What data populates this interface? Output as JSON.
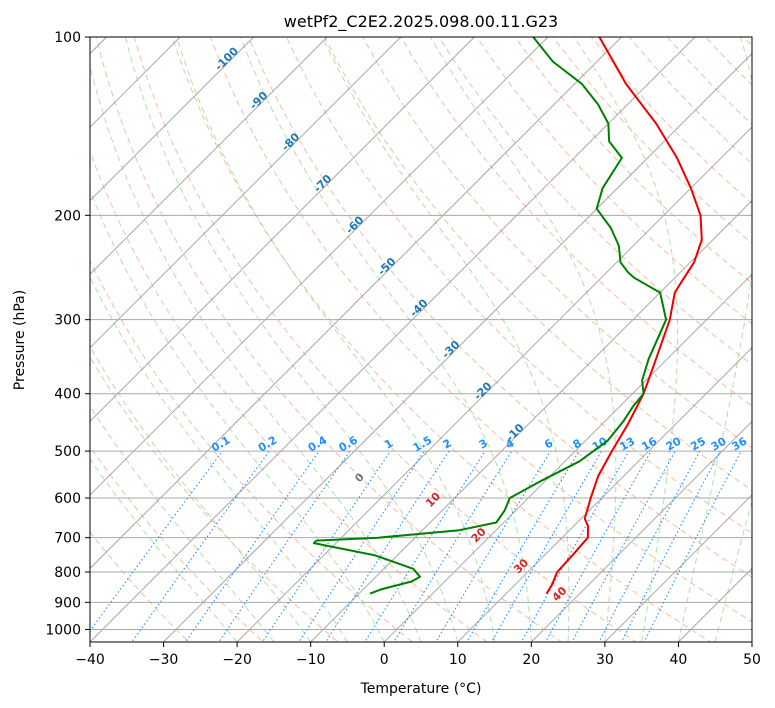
{
  "chart_data": {
    "type": "line",
    "title": "wetPf2_C2E2.2025.098.00.11.G23",
    "xlabel": "Temperature (°C)",
    "ylabel": "Pressure (hPa)",
    "xlim": [
      -40,
      50
    ],
    "ylim": [
      1050,
      100
    ],
    "y_scale": "log",
    "x_ticks": [
      -40,
      -30,
      -20,
      -10,
      0,
      10,
      20,
      30,
      40,
      50
    ],
    "x_tick_labels": [
      "−40",
      "−30",
      "−20",
      "−10",
      "0",
      "10",
      "20",
      "30",
      "40",
      "50"
    ],
    "y_ticks": [
      100,
      200,
      300,
      400,
      500,
      600,
      700,
      800,
      900,
      1000
    ],
    "y_tick_labels": [
      "100",
      "200",
      "300",
      "400",
      "500",
      "600",
      "700",
      "800",
      "900",
      "1000"
    ],
    "grid": true,
    "skew_deg": 45,
    "colors": {
      "temperature": "#ee0000",
      "dewpoint": "#008000",
      "isotherm": "#888888",
      "dry_adiabat": "#f4a582",
      "moist_adiabat": "#a6d8a0",
      "mixing_ratio": "#1e90ff",
      "isotherm_label": "#1f77b4",
      "wetbulb_label": "#d62728"
    },
    "series": [
      {
        "key": "temperature",
        "points": [
          [
            15.5,
            870
          ],
          [
            15.0,
            840
          ],
          [
            14.0,
            800
          ],
          [
            13.8,
            750
          ],
          [
            13.5,
            700
          ],
          [
            12.0,
            670
          ],
          [
            10.5,
            650
          ],
          [
            8.5,
            600
          ],
          [
            6.5,
            550
          ],
          [
            5.0,
            500
          ],
          [
            3.5,
            450
          ],
          [
            1.5,
            400
          ],
          [
            -1.5,
            350
          ],
          [
            -5.0,
            300
          ],
          [
            -8.0,
            270
          ],
          [
            -8.5,
            260
          ],
          [
            -9.5,
            240
          ],
          [
            -11.5,
            220
          ],
          [
            -15.0,
            200
          ],
          [
            -20.0,
            180
          ],
          [
            -26.0,
            160
          ],
          [
            -33.5,
            140
          ],
          [
            -43.0,
            120
          ],
          [
            -53.0,
            100
          ]
        ]
      },
      {
        "key": "dewpoint",
        "points": [
          [
            -8.5,
            870
          ],
          [
            -7.5,
            855
          ],
          [
            -4.5,
            830
          ],
          [
            -4.0,
            815
          ],
          [
            -6.0,
            790
          ],
          [
            -13.0,
            750
          ],
          [
            -23.0,
            715
          ],
          [
            -23.0,
            708
          ],
          [
            -15.0,
            700
          ],
          [
            -5.0,
            680
          ],
          [
            -1.0,
            660
          ],
          [
            -1.5,
            630
          ],
          [
            -2.5,
            600
          ],
          [
            -0.5,
            560
          ],
          [
            2.0,
            520
          ],
          [
            3.0,
            480
          ],
          [
            2.5,
            445
          ],
          [
            1.8,
            420
          ],
          [
            1.5,
            400
          ],
          [
            -0.5,
            380
          ],
          [
            -2.5,
            350
          ],
          [
            -5.5,
            300
          ],
          [
            -10.0,
            270
          ],
          [
            -15.5,
            255
          ],
          [
            -17.0,
            250
          ],
          [
            -19.5,
            240
          ],
          [
            -22.0,
            225
          ],
          [
            -25.5,
            210
          ],
          [
            -30.0,
            195
          ],
          [
            -32.0,
            180
          ],
          [
            -33.5,
            160
          ],
          [
            -37.5,
            150
          ],
          [
            -40.0,
            140
          ],
          [
            -44.0,
            130
          ],
          [
            -49.0,
            120
          ],
          [
            -56.0,
            110
          ],
          [
            -62.0,
            100
          ]
        ]
      }
    ],
    "isotherm_labels": [
      "-100",
      "-90",
      "-80",
      "-70",
      "-60",
      "-50",
      "-40",
      "-30",
      "-20",
      "-10"
    ],
    "wetbulb_labels": [
      "0",
      "10",
      "20",
      "30",
      "40"
    ],
    "mixing_ratio_labels": [
      "0.1",
      "0.2",
      "0.4",
      "0.6",
      "1",
      "1.5",
      "2",
      "3",
      "4",
      "6",
      "8",
      "10",
      "13",
      "16",
      "20",
      "25",
      "30",
      "36"
    ]
  }
}
